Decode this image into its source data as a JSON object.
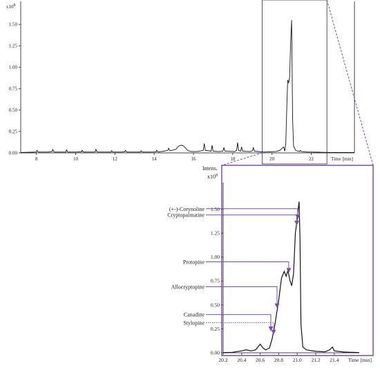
{
  "chart_data": [
    {
      "type": "line",
      "title": "",
      "y_exponent_label": "x10",
      "y_exponent_sup": "8",
      "x_label": "Time [min]",
      "x_ticks": [
        8,
        10,
        12,
        14,
        16,
        18,
        20,
        22
      ],
      "y_ticks": [
        0.0,
        0.25,
        0.5,
        0.75,
        1.0,
        1.25,
        1.5
      ],
      "x_tick_labels": [
        "8",
        "10",
        "12",
        "14",
        "16",
        "18",
        "20",
        "22"
      ],
      "y_tick_labels": [
        "0.00",
        "0.25",
        "0.50",
        "0.75",
        "1.00",
        "1.25",
        "1.50"
      ],
      "xlim": [
        7.2,
        24.2
      ],
      "ylim": [
        0,
        1.72
      ],
      "highlight_range": [
        19.5,
        22.8
      ],
      "series": [
        {
          "color": "#111111",
          "x": [
            7.2,
            7.8,
            8.0,
            8.02,
            8.1,
            8.6,
            8.8,
            8.83,
            8.9,
            9.3,
            9.5,
            9.53,
            9.6,
            10.0,
            10.3,
            10.33,
            10.4,
            10.9,
            11.0,
            11.03,
            11.1,
            11.6,
            11.8,
            11.83,
            11.9,
            12.3,
            12.5,
            12.53,
            12.6,
            13.0,
            13.3,
            13.33,
            13.4,
            13.9,
            14.1,
            14.13,
            14.2,
            14.5,
            14.7,
            14.73,
            14.8,
            15.1,
            15.2,
            15.3,
            15.4,
            15.5,
            15.6,
            15.7,
            15.8,
            15.9,
            16.2,
            16.5,
            16.55,
            16.6,
            16.9,
            16.95,
            17.0,
            17.3,
            17.5,
            17.55,
            17.6,
            18.1,
            18.2,
            18.25,
            18.3,
            18.4,
            18.45,
            18.5,
            18.9,
            19.0,
            19.05,
            19.1,
            19.6,
            20.2,
            20.4,
            20.6,
            20.65,
            20.7,
            20.75,
            20.8,
            20.85,
            20.9,
            20.95,
            21.0,
            21.05,
            21.1,
            21.2,
            21.4,
            21.45,
            21.5,
            21.8,
            22.0,
            22.3,
            22.8,
            23.3,
            23.8,
            24.2
          ],
          "y": [
            0.005,
            0.008,
            0.01,
            0.03,
            0.01,
            0.01,
            0.015,
            0.04,
            0.01,
            0.01,
            0.01,
            0.035,
            0.01,
            0.01,
            0.012,
            0.03,
            0.01,
            0.01,
            0.012,
            0.04,
            0.01,
            0.01,
            0.01,
            0.025,
            0.01,
            0.01,
            0.012,
            0.03,
            0.01,
            0.01,
            0.01,
            0.025,
            0.01,
            0.01,
            0.012,
            0.03,
            0.01,
            0.02,
            0.03,
            0.055,
            0.025,
            0.04,
            0.07,
            0.085,
            0.09,
            0.08,
            0.055,
            0.03,
            0.02,
            0.015,
            0.015,
            0.03,
            0.11,
            0.03,
            0.02,
            0.09,
            0.02,
            0.015,
            0.02,
            0.06,
            0.02,
            0.015,
            0.03,
            0.12,
            0.03,
            0.02,
            0.07,
            0.02,
            0.015,
            0.025,
            0.06,
            0.02,
            0.01,
            0.015,
            0.03,
            0.07,
            0.02,
            0.1,
            0.5,
            0.85,
            0.82,
            0.88,
            1.3,
            1.55,
            0.4,
            0.08,
            0.03,
            0.015,
            0.03,
            0.015,
            0.01,
            0.01,
            0.008,
            0.006,
            0.005,
            0.005,
            0.004
          ]
        }
      ]
    },
    {
      "type": "line",
      "title": "",
      "y_axis_title": "Intens.",
      "y_exponent_label": "x10",
      "y_exponent_sup": "8",
      "x_label": "Time [min]",
      "x_ticks": [
        20.2,
        20.4,
        20.6,
        20.8,
        21.0,
        21.2,
        21.4
      ],
      "y_ticks": [
        0.0,
        0.25,
        0.5,
        0.75,
        1.0,
        1.25,
        1.5
      ],
      "x_tick_labels": [
        "20.2",
        "20.4",
        "20.6",
        "20.8",
        "21.0",
        "21.2",
        "21.4"
      ],
      "y_tick_labels": [
        "0.00",
        "0.25",
        "0.50",
        "0.75",
        "1.00",
        "1.25",
        "1.50"
      ],
      "xlim": [
        20.2,
        21.67
      ],
      "ylim": [
        0,
        1.72
      ],
      "series": [
        {
          "color": "#111111",
          "x": [
            20.2,
            20.3,
            20.4,
            20.45,
            20.5,
            20.55,
            20.6,
            20.63,
            20.66,
            20.7,
            20.73,
            20.76,
            20.8,
            20.83,
            20.86,
            20.88,
            20.9,
            20.92,
            20.94,
            20.96,
            20.98,
            21.0,
            21.01,
            21.02,
            21.03,
            21.04,
            21.06,
            21.1,
            21.2,
            21.3,
            21.35,
            21.38,
            21.4,
            21.5,
            21.6,
            21.67
          ],
          "y": [
            0.002,
            0.005,
            0.02,
            0.03,
            0.02,
            0.03,
            0.09,
            0.05,
            0.03,
            0.05,
            0.15,
            0.3,
            0.55,
            0.78,
            0.85,
            0.8,
            0.86,
            0.76,
            0.7,
            0.83,
            1.25,
            1.4,
            1.5,
            1.58,
            1.2,
            0.3,
            0.06,
            0.03,
            0.015,
            0.01,
            0.03,
            0.06,
            0.02,
            0.008,
            0.004,
            0.002
          ]
        }
      ],
      "annotations": [
        {
          "label": "(+-)-Corynoline",
          "label_y": 1.505,
          "target_x": 21.005,
          "target_y": 1.4,
          "color": "#6b3fa0"
        },
        {
          "label": "Cryptopalmatine",
          "label_y": 1.44,
          "target_x": 20.995,
          "target_y": 1.335,
          "color": "#6b3fa0"
        },
        {
          "label": "Protopine",
          "label_y": 0.95,
          "target_x": 20.908,
          "target_y": 0.84,
          "color": "#6b3fa0"
        },
        {
          "label": "Allocryptopine",
          "label_y": 0.69,
          "target_x": 20.782,
          "target_y": 0.47,
          "color": "#6b3fa0"
        },
        {
          "label": "Canadine",
          "label_y": 0.4,
          "target_x": 20.715,
          "target_y": 0.23,
          "color": "#6b3fa0"
        },
        {
          "label": "Stylopine",
          "label_y": 0.315,
          "target_x": 20.745,
          "target_y": 0.195,
          "color": "#6b3fa0",
          "dotted": true
        }
      ]
    }
  ]
}
